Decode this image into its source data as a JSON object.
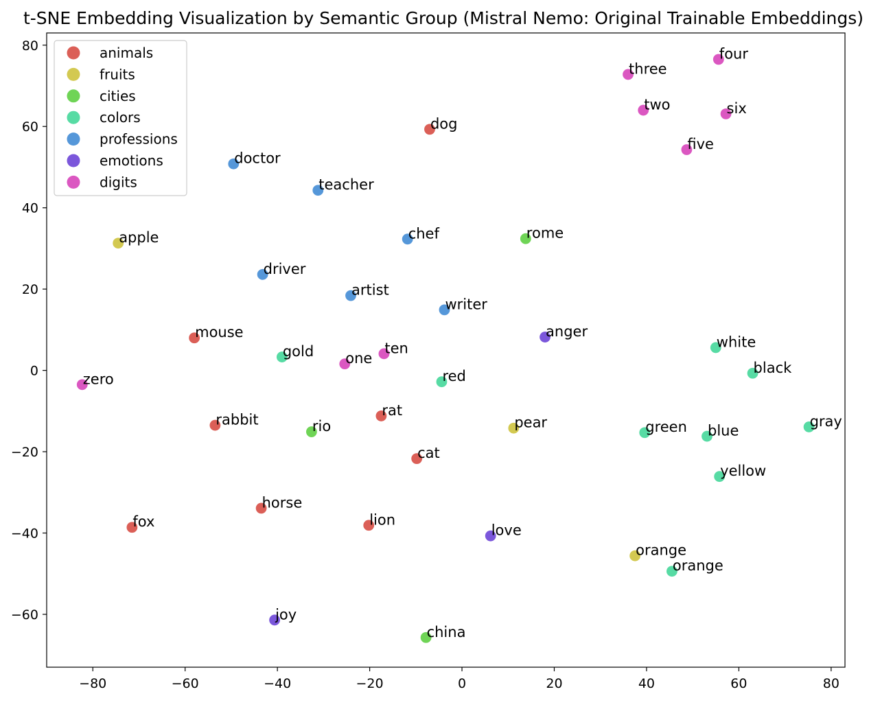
{
  "chart_data": {
    "type": "scatter",
    "title": "t-SNE Embedding Visualization by Semantic Group (Mistral Nemo: Original Trainable Embeddings)",
    "xlabel": "",
    "ylabel": "",
    "xlim": [
      -90,
      83
    ],
    "ylim": [
      -73,
      83
    ],
    "xticks": [
      -80,
      -60,
      -40,
      -20,
      0,
      20,
      40,
      60,
      80
    ],
    "yticks": [
      -60,
      -40,
      -20,
      0,
      20,
      40,
      60,
      80
    ],
    "xtick_labels": [
      "−80",
      "−60",
      "−40",
      "−20",
      "0",
      "20",
      "40",
      "60",
      "80"
    ],
    "ytick_labels": [
      "−60",
      "−40",
      "−20",
      "0",
      "20",
      "40",
      "60",
      "80"
    ],
    "grid": false,
    "legend_position": "top-left",
    "series": [
      {
        "name": "animals",
        "color": "#db5f57",
        "points": [
          {
            "label": "dog",
            "x": -7,
            "y": 59.3
          },
          {
            "label": "mouse",
            "x": -58,
            "y": 8
          },
          {
            "label": "rabbit",
            "x": -53.5,
            "y": -13.5
          },
          {
            "label": "rat",
            "x": -17.5,
            "y": -11.2
          },
          {
            "label": "cat",
            "x": -9.8,
            "y": -21.7
          },
          {
            "label": "horse",
            "x": -43.5,
            "y": -33.9
          },
          {
            "label": "lion",
            "x": -20.2,
            "y": -38.1
          },
          {
            "label": "fox",
            "x": -71.5,
            "y": -38.6
          }
        ]
      },
      {
        "name": "fruits",
        "color": "#d3c951",
        "points": [
          {
            "label": "apple",
            "x": -74.5,
            "y": 31.3
          },
          {
            "label": "pear",
            "x": 11.2,
            "y": -14.2
          },
          {
            "label": "orange",
            "x": 37.5,
            "y": -45.6
          }
        ]
      },
      {
        "name": "cities",
        "color": "#6fd456",
        "points": [
          {
            "label": "rome",
            "x": 13.8,
            "y": 32.4
          },
          {
            "label": "rio",
            "x": -32.6,
            "y": -15.1
          },
          {
            "label": "china",
            "x": -7.8,
            "y": -65.7
          }
        ]
      },
      {
        "name": "colors",
        "color": "#57dba4",
        "points": [
          {
            "label": "gold",
            "x": -39,
            "y": 3.3
          },
          {
            "label": "red",
            "x": -4.4,
            "y": -2.8
          },
          {
            "label": "white",
            "x": 55,
            "y": 5.6
          },
          {
            "label": "black",
            "x": 63,
            "y": -0.7
          },
          {
            "label": "green",
            "x": 39.6,
            "y": -15.3
          },
          {
            "label": "blue",
            "x": 53.1,
            "y": -16.2
          },
          {
            "label": "gray",
            "x": 75.2,
            "y": -13.9
          },
          {
            "label": "yellow",
            "x": 55.8,
            "y": -26.1
          },
          {
            "label": "orange",
            "x": 45.5,
            "y": -49.4
          }
        ]
      },
      {
        "name": "professions",
        "color": "#5597d9",
        "points": [
          {
            "label": "doctor",
            "x": -49.5,
            "y": 50.8
          },
          {
            "label": "teacher",
            "x": -31.2,
            "y": 44.3
          },
          {
            "label": "chef",
            "x": -11.8,
            "y": 32.3
          },
          {
            "label": "driver",
            "x": -43.2,
            "y": 23.6
          },
          {
            "label": "artist",
            "x": -24.1,
            "y": 18.4
          },
          {
            "label": "writer",
            "x": -3.8,
            "y": 14.9
          }
        ]
      },
      {
        "name": "emotions",
        "color": "#7b57db",
        "points": [
          {
            "label": "anger",
            "x": 18,
            "y": 8.2
          },
          {
            "label": "love",
            "x": 6.2,
            "y": -40.7
          },
          {
            "label": "joy",
            "x": -40.6,
            "y": -61.4
          }
        ]
      },
      {
        "name": "digits",
        "color": "#db57c1",
        "points": [
          {
            "label": "four",
            "x": 55.6,
            "y": 76.5
          },
          {
            "label": "three",
            "x": 36,
            "y": 72.8
          },
          {
            "label": "two",
            "x": 39.3,
            "y": 64
          },
          {
            "label": "six",
            "x": 57.2,
            "y": 63.1
          },
          {
            "label": "five",
            "x": 48.7,
            "y": 54.3
          },
          {
            "label": "zero",
            "x": -82.3,
            "y": -3.5
          },
          {
            "label": "one",
            "x": -25.4,
            "y": 1.6
          },
          {
            "label": "ten",
            "x": -16.9,
            "y": 4.1
          }
        ]
      }
    ]
  }
}
